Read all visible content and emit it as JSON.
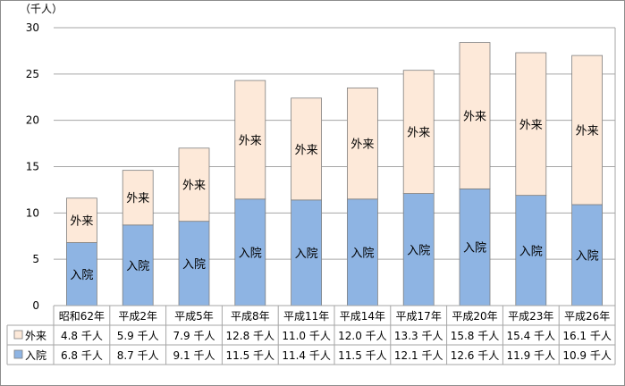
{
  "chart_data": {
    "type": "bar",
    "stacked": true,
    "unit_label": "（千人）",
    "categories": [
      "昭和62年",
      "平成2年",
      "平成5年",
      "平成8年",
      "平成11年",
      "平成14年",
      "平成17年",
      "平成20年",
      "平成23年",
      "平成26年"
    ],
    "series": [
      {
        "name": "入院",
        "color": "#8eb4e3",
        "values": [
          6.8,
          8.7,
          9.1,
          11.5,
          11.4,
          11.5,
          12.1,
          12.6,
          11.9,
          10.9
        ],
        "table_labels": [
          "6.8 千人",
          "8.7 千人",
          "9.1 千人",
          "11.5 千人",
          "11.4 千人",
          "11.5 千人",
          "12.1 千人",
          "12.6 千人",
          "11.9 千人",
          "10.9 千人"
        ]
      },
      {
        "name": "外来",
        "color": "#fde9d9",
        "values": [
          4.8,
          5.9,
          7.9,
          12.8,
          11.0,
          12.0,
          13.3,
          15.8,
          15.4,
          16.1
        ],
        "table_labels": [
          "4.8 千人",
          "5.9 千人",
          "7.9 千人",
          "12.8 千人",
          "11.0 千人",
          "12.0 千人",
          "13.3 千人",
          "15.8 千人",
          "15.4 千人",
          "16.1 千人"
        ]
      }
    ],
    "ylim": [
      0,
      30
    ],
    "yticks": [
      "0",
      "5",
      "10",
      "15",
      "20",
      "25",
      "30"
    ],
    "grid": true,
    "legend": "data-table"
  }
}
